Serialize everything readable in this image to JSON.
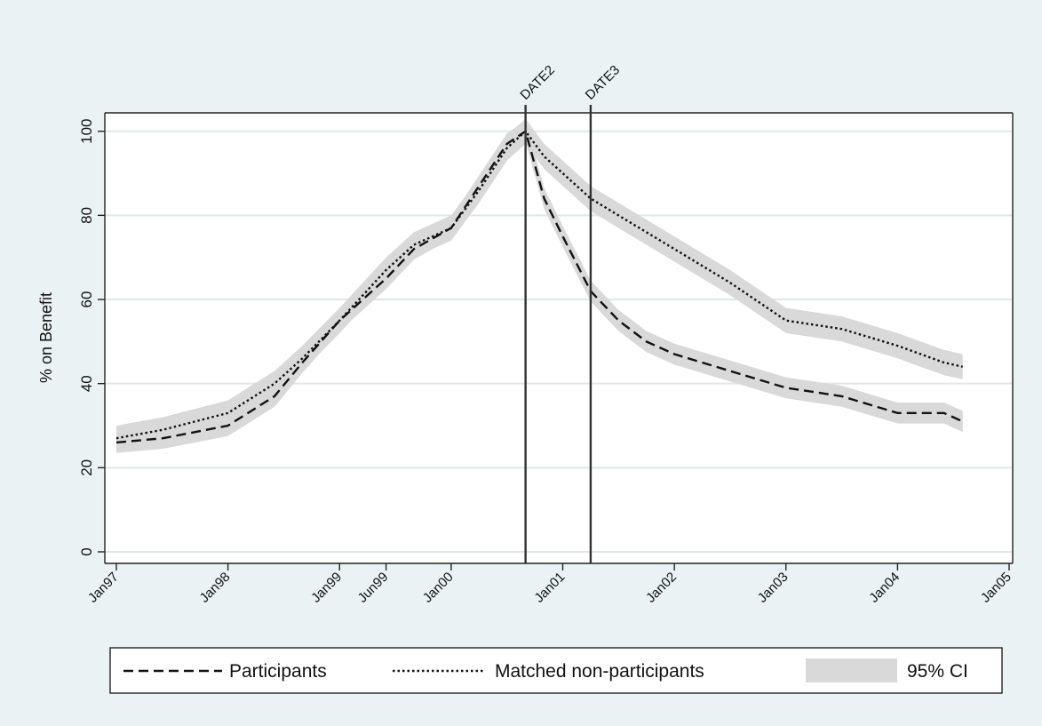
{
  "chart_data": {
    "type": "line",
    "title": "",
    "ylabel": "% on Benefit",
    "xlabel": "",
    "ylim": [
      0,
      100
    ],
    "y_ticks": [
      0,
      20,
      40,
      60,
      80,
      100
    ],
    "x_ticks": [
      "Jan97",
      "Jan98",
      "Jan99",
      "Jun99",
      "Jan00",
      "Jan01",
      "Jan02",
      "Jan03",
      "Jan04",
      "Jan05"
    ],
    "grid": "horizontal",
    "legend_position": "bottom",
    "vlines": [
      {
        "label": "DATE2",
        "x": "Sep00"
      },
      {
        "label": "DATE3",
        "x": "Apr01"
      }
    ],
    "legend": [
      "Participants",
      "Matched non-participants",
      "95% CI"
    ],
    "colors": {
      "background": "#eaf2f3",
      "plot_bg": "#ffffff",
      "grid": "#dfe7e8",
      "ci": "#d9d9d9",
      "line": "#111111"
    },
    "series": [
      {
        "name": "Participants",
        "style": "dashed",
        "x": [
          "Jan97",
          "Jun97",
          "Jan98",
          "Jun98",
          "Sep98",
          "Jan99",
          "Jun99",
          "Sep99",
          "Jan00",
          "Apr00",
          "Jul00",
          "Sep00",
          "Oct00",
          "Nov00",
          "Jan01",
          "Apr01",
          "Jul01",
          "Oct01",
          "Jan02",
          "Jul02",
          "Jan03",
          "Jul03",
          "Jan04",
          "Jun04",
          "Aug04"
        ],
        "values": [
          26,
          27,
          30,
          37,
          45,
          55,
          65,
          72,
          77,
          87,
          97,
          100,
          92,
          84,
          75,
          62,
          55,
          50,
          47,
          43,
          39,
          37,
          33,
          33,
          31
        ],
        "ci_halfwidth": 2.5
      },
      {
        "name": "Matched non-participants",
        "style": "dotted",
        "x": [
          "Jan97",
          "Jun97",
          "Jan98",
          "Jun98",
          "Sep98",
          "Jan99",
          "Jun99",
          "Sep99",
          "Jan00",
          "Apr00",
          "Jul00",
          "Sep00",
          "Oct00",
          "Nov00",
          "Jan01",
          "Apr01",
          "Jul01",
          "Oct01",
          "Jan02",
          "Jul02",
          "Jan03",
          "Jul03",
          "Jan04",
          "Jun04",
          "Aug04"
        ],
        "values": [
          27,
          29,
          33,
          40,
          46,
          55,
          67,
          73,
          77,
          86,
          96,
          100,
          97,
          94,
          90,
          84,
          80,
          76,
          72,
          64,
          55,
          53,
          49,
          45,
          44
        ],
        "ci_halfwidth": 3
      }
    ]
  }
}
